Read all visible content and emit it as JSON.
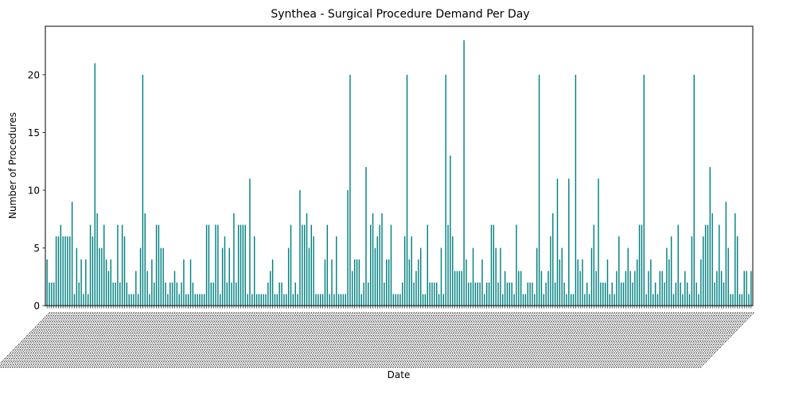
{
  "chart_data": {
    "type": "bar",
    "title": "Synthea - Surgical Procedure Demand Per Day",
    "xlabel": "Date",
    "ylabel": "Number of Procedures",
    "ylim": [
      0,
      24.2
    ],
    "yticks": [
      0,
      5,
      10,
      15,
      20
    ],
    "grid": false,
    "legend": "none",
    "x_tick_labels_legible": false,
    "categories_note_count": 310,
    "series": [
      {
        "color": "#008080",
        "values": [
          4,
          2,
          2,
          2,
          6,
          6,
          7,
          6,
          6,
          6,
          6,
          9,
          1,
          5,
          2,
          4,
          1,
          4,
          1,
          7,
          6,
          21,
          8,
          5,
          5,
          7,
          4,
          3,
          4,
          2,
          2,
          7,
          2,
          7,
          6,
          2,
          1,
          1,
          1,
          3,
          1,
          5,
          20,
          8,
          3,
          1,
          4,
          2,
          7,
          7,
          5,
          5,
          2,
          1,
          2,
          2,
          3,
          2,
          1,
          2,
          4,
          1,
          1,
          4,
          2,
          1,
          1,
          1,
          1,
          1,
          7,
          7,
          2,
          2,
          7,
          7,
          1,
          5,
          6,
          2,
          5,
          2,
          8,
          2,
          7,
          7,
          7,
          7,
          1,
          11,
          1,
          6,
          1,
          1,
          1,
          1,
          1,
          2,
          3,
          4,
          1,
          1,
          2,
          2,
          1,
          1,
          5,
          7,
          1,
          2,
          1,
          10,
          7,
          7,
          8,
          5,
          7,
          6,
          1,
          1,
          1,
          1,
          4,
          7,
          1,
          4,
          1,
          6,
          1,
          1,
          1,
          1,
          10,
          20,
          3,
          4,
          4,
          4,
          1,
          2,
          12,
          2,
          7,
          8,
          5,
          6,
          7,
          8,
          2,
          4,
          4,
          7,
          1,
          1,
          1,
          1,
          2,
          6,
          20,
          4,
          6,
          2,
          3,
          4,
          5,
          1,
          1,
          7,
          2,
          2,
          2,
          2,
          1,
          5,
          1,
          20,
          7,
          13,
          6,
          3,
          3,
          3,
          3,
          23,
          4,
          2,
          2,
          5,
          2,
          2,
          2,
          4,
          1,
          2,
          2,
          7,
          7,
          5,
          2,
          5,
          1,
          3,
          2,
          2,
          2,
          1,
          7,
          3,
          3,
          1,
          1,
          2,
          2,
          2,
          1,
          5,
          20,
          3,
          1,
          2,
          3,
          6,
          8,
          2,
          11,
          4,
          5,
          2,
          1,
          11,
          1,
          1,
          20,
          4,
          3,
          4,
          1,
          2,
          1,
          5,
          7,
          3,
          11,
          2,
          2,
          2,
          4,
          1,
          2,
          1,
          3,
          6,
          2,
          2,
          3,
          5,
          3,
          2,
          3,
          4,
          7,
          7,
          20,
          1,
          3,
          4,
          1,
          2,
          1,
          3,
          3,
          2,
          5,
          4,
          6,
          1,
          2,
          7,
          2,
          1,
          3,
          2,
          1,
          6,
          20,
          2,
          1,
          4,
          6,
          7,
          7,
          12,
          8,
          2,
          3,
          7,
          3,
          2,
          9,
          5,
          1,
          1,
          8,
          6,
          1,
          1,
          3,
          3,
          1,
          3
        ]
      }
    ]
  }
}
